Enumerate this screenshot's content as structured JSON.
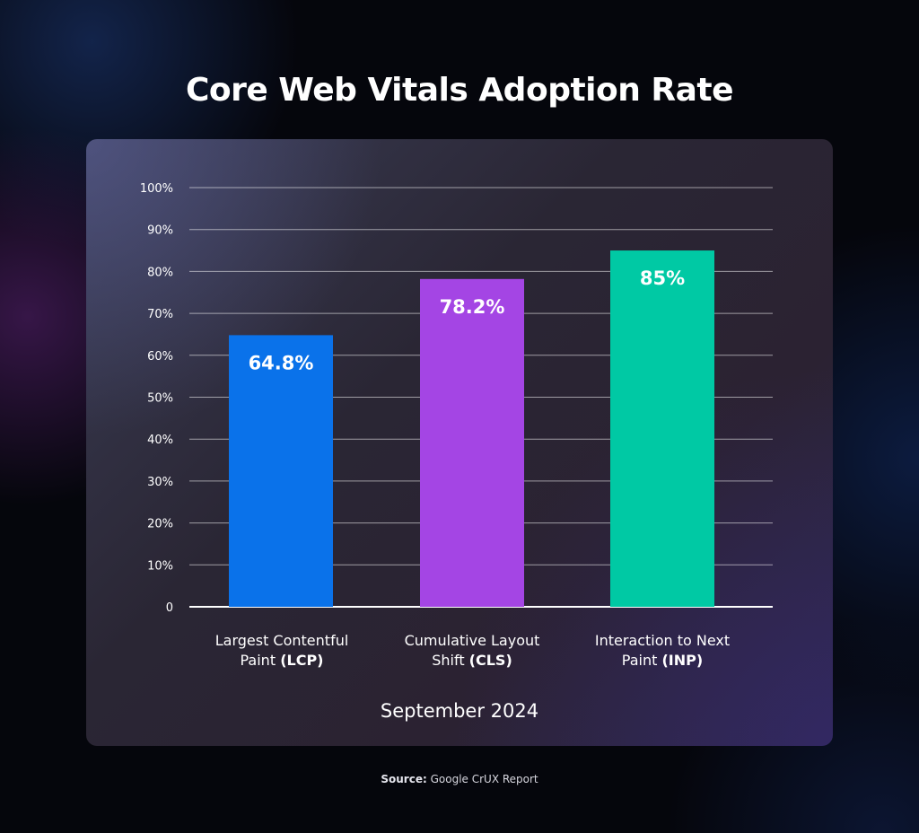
{
  "chart_data": {
    "type": "bar",
    "title": "Core Web Vitals Adoption Rate",
    "categories": [
      {
        "line1": "Largest Contentful",
        "line2_prefix": "Paint ",
        "line2_bold": "(LCP)"
      },
      {
        "line1": "Cumulative Layout",
        "line2_prefix": "Shift ",
        "line2_bold": "(CLS)"
      },
      {
        "line1": "Interaction to Next",
        "line2_prefix": "Paint ",
        "line2_bold": "(INP)"
      }
    ],
    "values": [
      64.8,
      78.2,
      85
    ],
    "data_labels": [
      "64.8%",
      "78.2%",
      "85%"
    ],
    "colors": [
      "#0a72ea",
      "#a445e4",
      "#00c9a4"
    ],
    "ylim": [
      0,
      100
    ],
    "yticks": [
      "0",
      "10%",
      "20%",
      "30%",
      "40%",
      "50%",
      "60%",
      "70%",
      "80%",
      "90%",
      "100%"
    ],
    "xlabel": "September 2024",
    "grid": true,
    "legend": "none"
  },
  "source": {
    "label": "Source:",
    "text": "Google CrUX Report"
  }
}
